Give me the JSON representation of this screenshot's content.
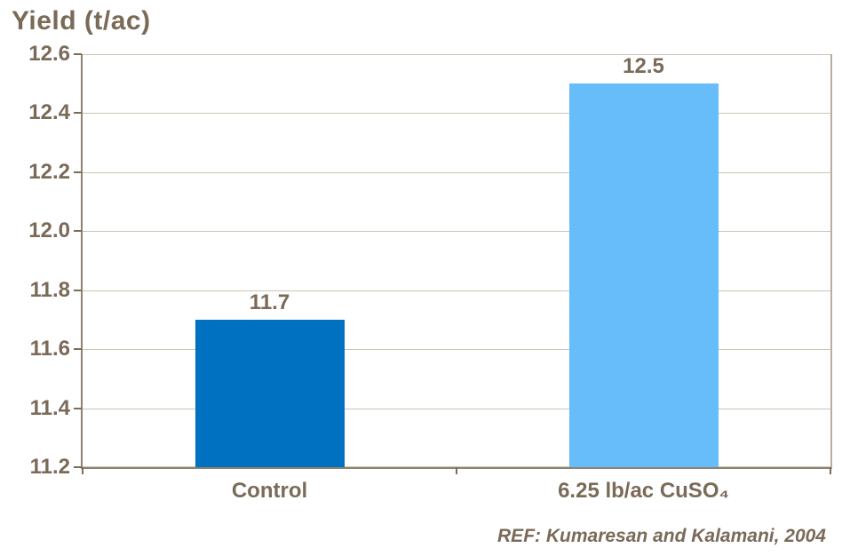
{
  "chart_data": {
    "type": "bar",
    "title": "Yield (t/ac)",
    "categories": [
      "Control",
      "6.25 lb/ac CuSO₄"
    ],
    "values": [
      11.7,
      12.5
    ],
    "value_labels": [
      "11.7",
      "12.5"
    ],
    "series_colors": [
      "#0070C0",
      "#66BDFA"
    ],
    "ylim": [
      11.2,
      12.6
    ],
    "yticks": [
      12.6,
      12.4,
      12.2,
      12.0,
      11.8,
      11.6,
      11.4,
      11.2
    ],
    "ytick_labels": [
      "12.6",
      "12.4",
      "12.2",
      "12.0",
      "11.8",
      "11.6",
      "11.4",
      "11.2"
    ],
    "xlabel": "",
    "ylabel": "Yield (t/ac)",
    "grid": true,
    "legend": false,
    "annotation": "REF: Kumaresan and Kalamani, 2004"
  },
  "colors": {
    "background": "#FFFFFF",
    "text": "#7A6A58",
    "axis_line": "#8E8170",
    "tick_mark": "#7C6C58",
    "gridline": "#CCC4B4",
    "plot_right_border": "#B7AE9E",
    "bar_control": "#0070C0",
    "bar_cuso4": "#66BDFA"
  }
}
